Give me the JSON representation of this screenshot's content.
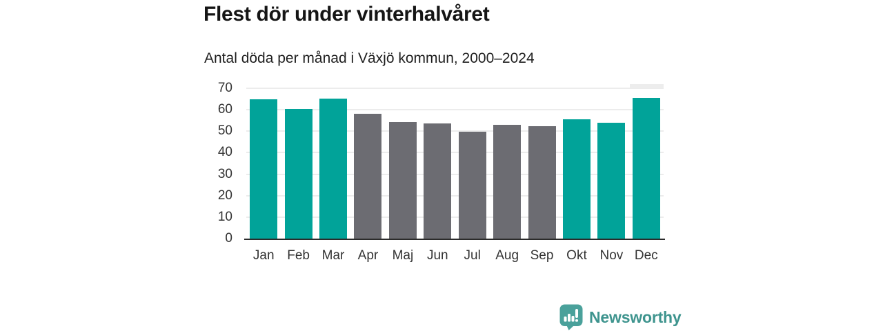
{
  "chart_data": {
    "type": "bar",
    "title": "Flest dör under vinterhalvåret",
    "subtitle": "Antal döda per månad i Växjö kommun, 2000–2024",
    "categories": [
      "Jan",
      "Feb",
      "Mar",
      "Apr",
      "Maj",
      "Jun",
      "Jul",
      "Aug",
      "Sep",
      "Okt",
      "Nov",
      "Dec"
    ],
    "values": [
      64.8,
      60.4,
      65.2,
      58.1,
      54.3,
      53.7,
      49.8,
      52.9,
      52.3,
      55.7,
      54.1,
      65.5
    ],
    "groups": [
      "winter",
      "winter",
      "winter",
      "summer",
      "summer",
      "summer",
      "summer",
      "summer",
      "summer",
      "winter",
      "winter",
      "winter"
    ],
    "colors": {
      "winter": "#01a399",
      "summer": "#6c6c72"
    },
    "xlabel": "",
    "ylabel": "",
    "ylim": [
      0,
      70
    ],
    "yticks": [
      0,
      10,
      20,
      30,
      40,
      50,
      60,
      70
    ],
    "grid": true,
    "legend": "none"
  },
  "branding": {
    "name": "Newsworthy",
    "text_color": "#3e948e",
    "icon_color": "#4aa19b",
    "icon": "newsworthy-bars-exclamation"
  }
}
